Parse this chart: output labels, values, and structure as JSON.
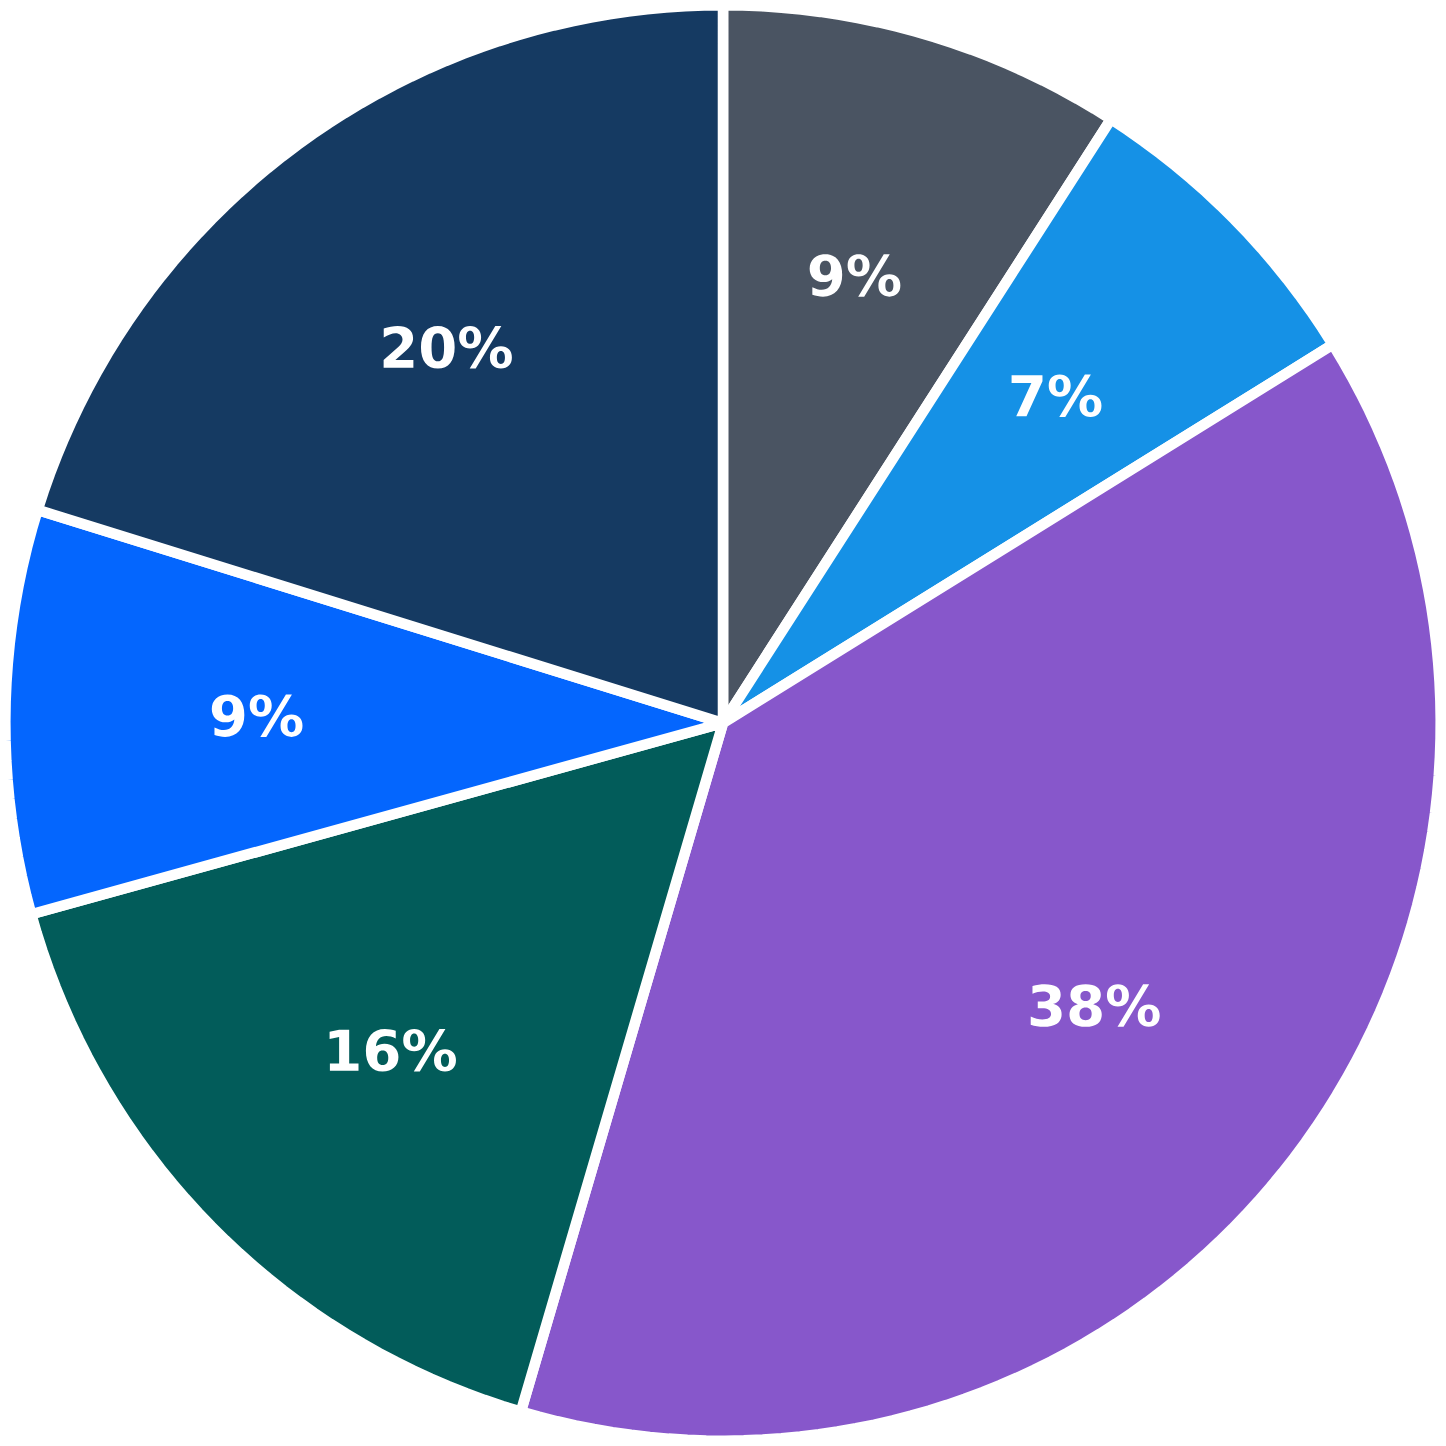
{
  "chart_data": {
    "type": "pie",
    "categories": [
      null,
      null,
      null,
      null,
      null,
      null
    ],
    "values": [
      9,
      7,
      38,
      16,
      9,
      20
    ],
    "value_labels": [
      "9%",
      "7%",
      "38%",
      "16%",
      "9%",
      "20%"
    ],
    "colors": [
      "#4a5462",
      "#1591e6",
      "#8757cb",
      "#025c5a",
      "#0466fe",
      "#153a62"
    ]
  }
}
